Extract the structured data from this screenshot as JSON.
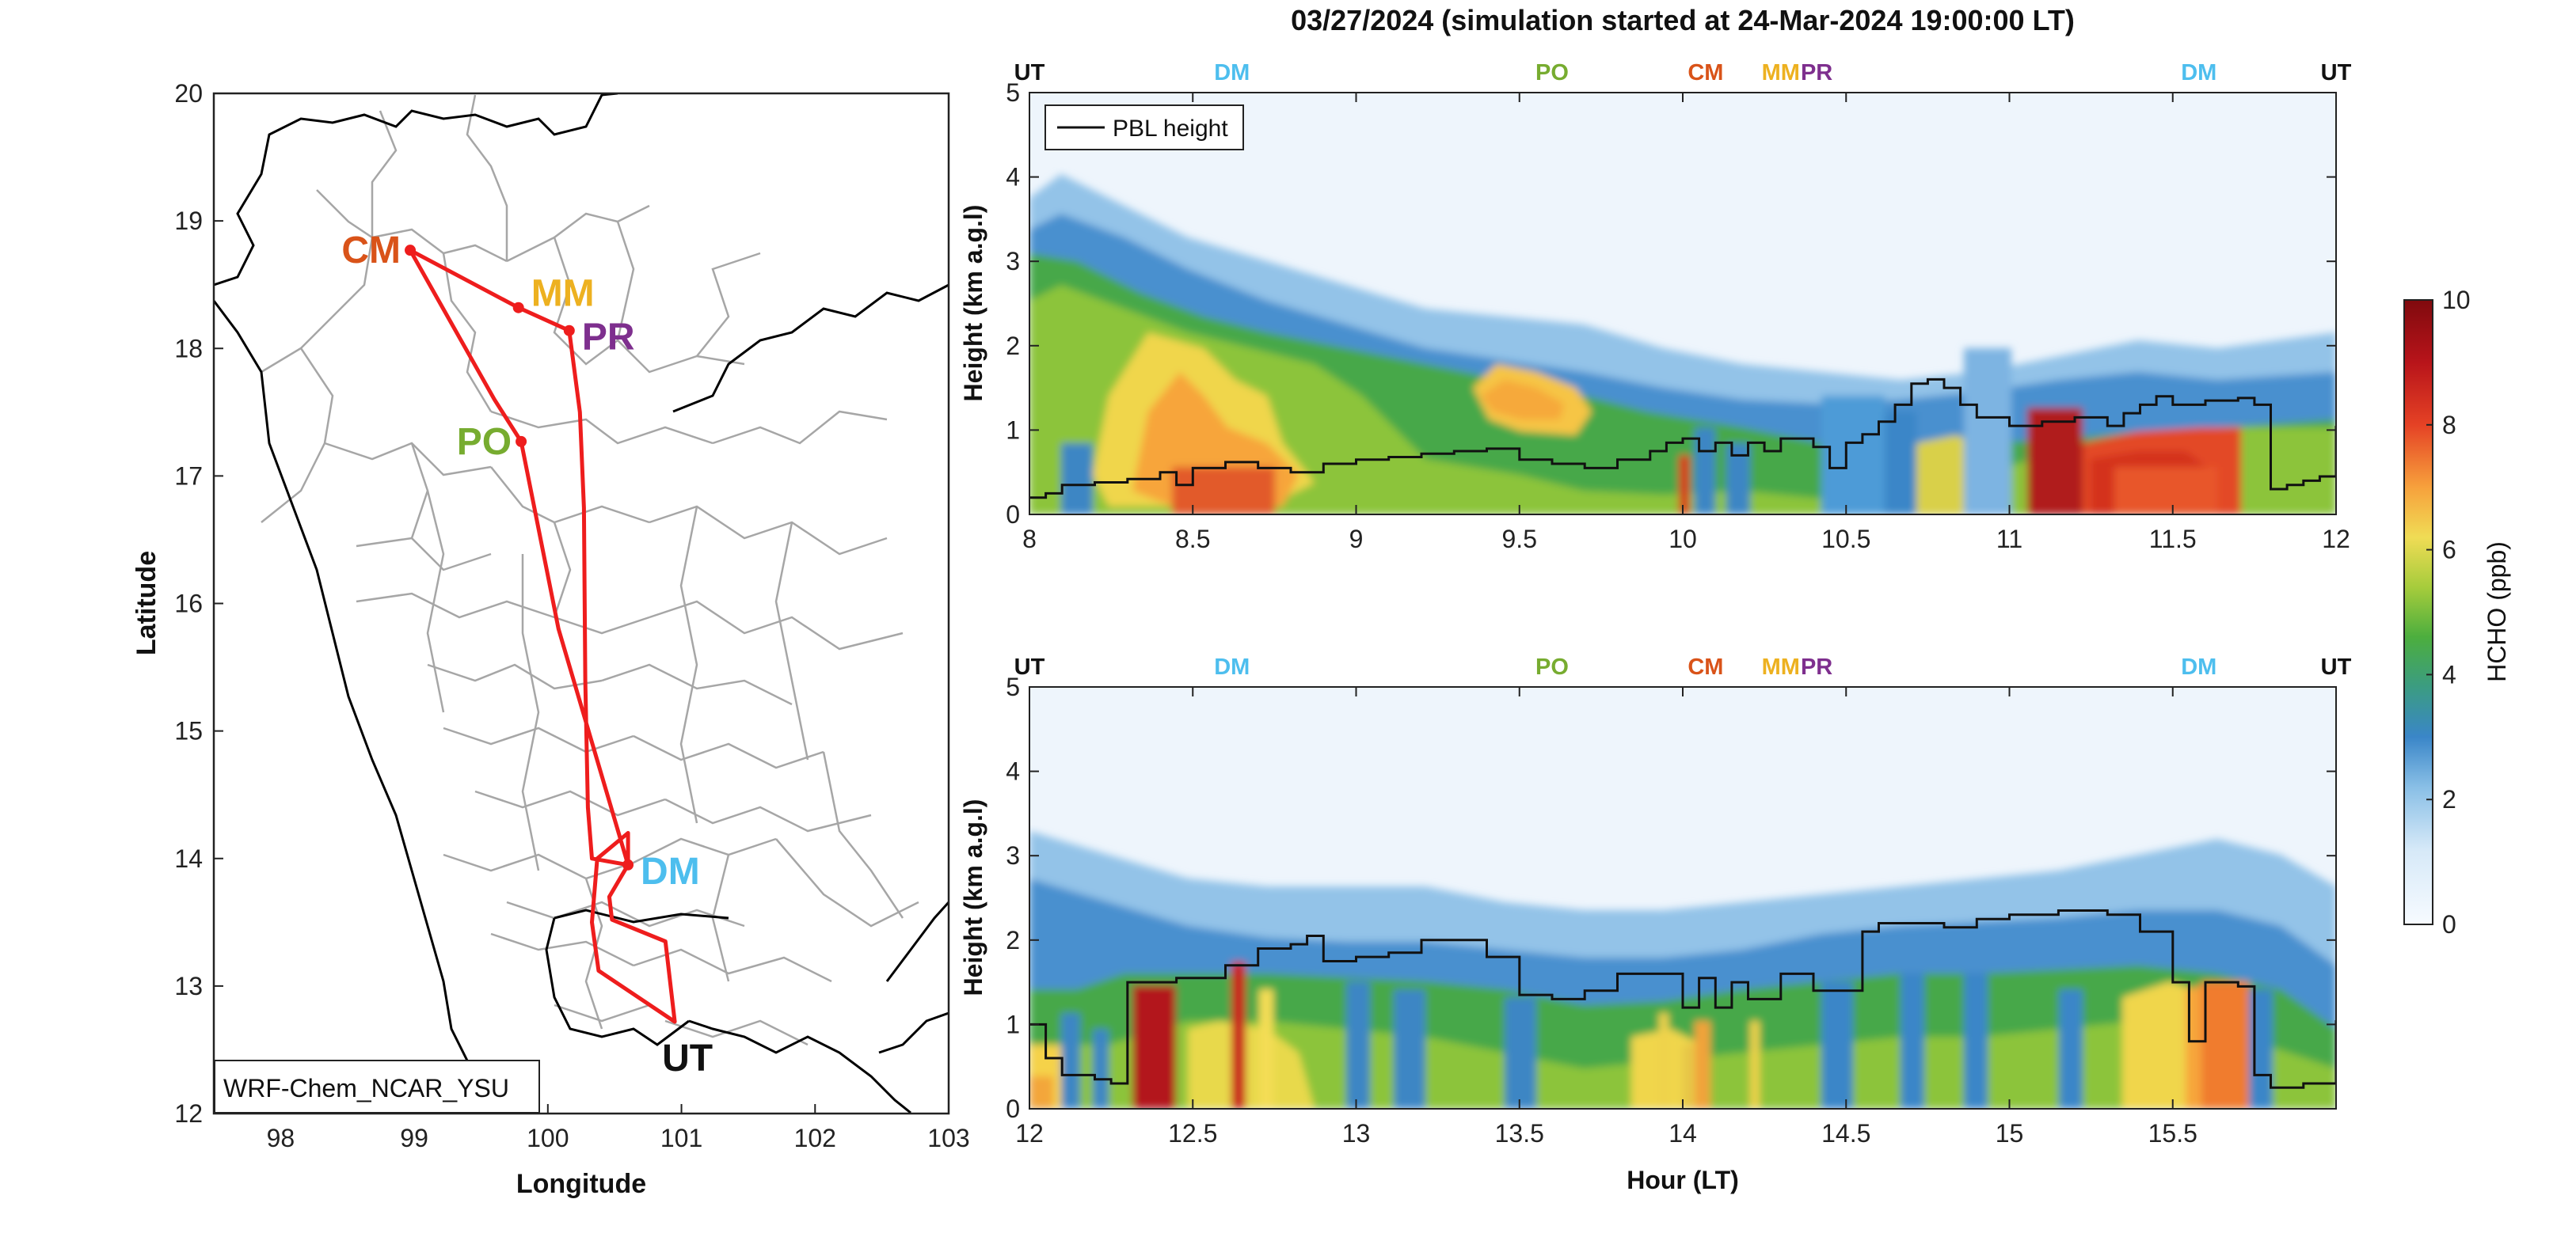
{
  "title": "03/27/2024 (simulation started at 24-Mar-2024 19:00:00 LT)",
  "colors": {
    "route": "#ee1d1d",
    "UT": "#111111",
    "DM": "#4dbeee",
    "PO": "#77ac30",
    "CM": "#d95319",
    "MM": "#edb120",
    "PR": "#7e2f8e",
    "boundary_thin": "#a6a6a6",
    "coast": "#000000"
  },
  "chart_data": [
    {
      "type": "line",
      "name": "map",
      "xlabel": "Longitude",
      "ylabel": "Latitude",
      "xlim": [
        97.5,
        103
      ],
      "ylim": [
        12,
        20
      ],
      "xticks": [
        "98",
        "99",
        "100",
        "101",
        "102",
        "103"
      ],
      "yticks": [
        "12",
        "13",
        "14",
        "15",
        "16",
        "17",
        "18",
        "19",
        "20"
      ],
      "model_label": "WRF-Chem_NCAR_YSU",
      "route": [
        [
          98.97,
          18.77
        ],
        [
          99.78,
          18.32
        ],
        [
          100.16,
          18.14
        ],
        [
          100.24,
          17.5
        ],
        [
          100.27,
          16.75
        ],
        [
          100.28,
          15.4
        ],
        [
          100.3,
          14.4
        ],
        [
          100.33,
          14.0
        ],
        [
          100.6,
          13.95
        ],
        [
          100.46,
          13.7
        ],
        [
          100.48,
          13.52
        ],
        [
          100.88,
          13.35
        ],
        [
          100.95,
          12.72
        ],
        [
          100.38,
          13.12
        ],
        [
          100.33,
          13.5
        ],
        [
          100.37,
          14.0
        ],
        [
          100.6,
          14.2
        ],
        [
          100.6,
          13.95
        ],
        [
          100.08,
          15.8
        ],
        [
          99.8,
          17.27
        ],
        [
          99.6,
          17.6
        ],
        [
          98.97,
          18.77
        ]
      ],
      "sites": [
        {
          "label": "CM",
          "lon": 98.97,
          "lat": 18.77,
          "label_anchor": "left"
        },
        {
          "label": "MM",
          "lon": 99.78,
          "lat": 18.32,
          "label_anchor": "right-up"
        },
        {
          "label": "PR",
          "lon": 100.16,
          "lat": 18.14,
          "label_anchor": "right"
        },
        {
          "label": "PO",
          "lon": 99.8,
          "lat": 17.27,
          "label_anchor": "left"
        },
        {
          "label": "DM",
          "lon": 100.6,
          "lat": 13.95,
          "label_anchor": "right"
        },
        {
          "label": "UT",
          "lon": 100.95,
          "lat": 12.72,
          "label_anchor": "below"
        }
      ]
    },
    {
      "type": "heatmap",
      "name": "curtain-top",
      "xlabel": "",
      "ylabel": "Height (km a.g.l)",
      "xlim": [
        8,
        12
      ],
      "ylim": [
        0,
        5
      ],
      "xticks": [
        "8",
        "8.5",
        "9",
        "9.5",
        "10",
        "10.5",
        "11",
        "11.5",
        "12"
      ],
      "yticks": [
        "0",
        "1",
        "2",
        "3",
        "4",
        "5"
      ],
      "site_labels": [
        {
          "label": "UT",
          "x": 8.0
        },
        {
          "label": "DM",
          "x": 8.62
        },
        {
          "label": "PO",
          "x": 9.6
        },
        {
          "label": "CM",
          "x": 10.07
        },
        {
          "label": "MM",
          "x": 10.3
        },
        {
          "label": "PR",
          "x": 10.41
        },
        {
          "label": "DM",
          "x": 11.58
        },
        {
          "label": "UT",
          "x": 12.0
        }
      ],
      "legend": [
        "PBL height"
      ],
      "pbl_height": [
        [
          8.0,
          0.2
        ],
        [
          8.05,
          0.25
        ],
        [
          8.1,
          0.35
        ],
        [
          8.2,
          0.38
        ],
        [
          8.3,
          0.42
        ],
        [
          8.4,
          0.5
        ],
        [
          8.45,
          0.35
        ],
        [
          8.5,
          0.55
        ],
        [
          8.6,
          0.62
        ],
        [
          8.7,
          0.55
        ],
        [
          8.8,
          0.5
        ],
        [
          8.9,
          0.6
        ],
        [
          9.0,
          0.65
        ],
        [
          9.1,
          0.68
        ],
        [
          9.2,
          0.72
        ],
        [
          9.3,
          0.75
        ],
        [
          9.4,
          0.78
        ],
        [
          9.5,
          0.65
        ],
        [
          9.6,
          0.6
        ],
        [
          9.7,
          0.55
        ],
        [
          9.8,
          0.65
        ],
        [
          9.9,
          0.75
        ],
        [
          9.95,
          0.85
        ],
        [
          10.0,
          0.9
        ],
        [
          10.05,
          0.75
        ],
        [
          10.1,
          0.85
        ],
        [
          10.15,
          0.7
        ],
        [
          10.2,
          0.85
        ],
        [
          10.25,
          0.75
        ],
        [
          10.3,
          0.9
        ],
        [
          10.4,
          0.8
        ],
        [
          10.45,
          0.55
        ],
        [
          10.5,
          0.85
        ],
        [
          10.55,
          0.95
        ],
        [
          10.6,
          1.1
        ],
        [
          10.65,
          1.3
        ],
        [
          10.7,
          1.55
        ],
        [
          10.75,
          1.6
        ],
        [
          10.8,
          1.5
        ],
        [
          10.85,
          1.3
        ],
        [
          10.9,
          1.15
        ],
        [
          11.0,
          1.05
        ],
        [
          11.1,
          1.1
        ],
        [
          11.2,
          1.15
        ],
        [
          11.3,
          1.05
        ],
        [
          11.35,
          1.2
        ],
        [
          11.4,
          1.3
        ],
        [
          11.45,
          1.4
        ],
        [
          11.5,
          1.3
        ],
        [
          11.6,
          1.35
        ],
        [
          11.7,
          1.38
        ],
        [
          11.75,
          1.3
        ],
        [
          11.8,
          0.3
        ],
        [
          11.85,
          0.35
        ],
        [
          11.9,
          0.4
        ],
        [
          11.95,
          0.45
        ],
        [
          12.0,
          1.05
        ]
      ]
    },
    {
      "type": "heatmap",
      "name": "curtain-bottom",
      "xlabel": "Hour (LT)",
      "ylabel": "Height (km a.g.l)",
      "xlim": [
        12,
        16
      ],
      "ylim": [
        0,
        5
      ],
      "xticks": [
        "12",
        "12.5",
        "13",
        "13.5",
        "14",
        "14.5",
        "15",
        "15.5"
      ],
      "yticks": [
        "0",
        "1",
        "2",
        "3",
        "4",
        "5"
      ],
      "site_labels": [
        {
          "label": "UT",
          "x": 12.0
        },
        {
          "label": "DM",
          "x": 12.62
        },
        {
          "label": "PO",
          "x": 13.6
        },
        {
          "label": "CM",
          "x": 14.07
        },
        {
          "label": "MM",
          "x": 14.3
        },
        {
          "label": "PR",
          "x": 14.41
        },
        {
          "label": "DM",
          "x": 15.58
        },
        {
          "label": "UT",
          "x": 16.0
        }
      ],
      "pbl_height": [
        [
          12.0,
          1.0
        ],
        [
          12.05,
          0.6
        ],
        [
          12.1,
          0.4
        ],
        [
          12.2,
          0.35
        ],
        [
          12.25,
          0.3
        ],
        [
          12.3,
          1.5
        ],
        [
          12.45,
          1.55
        ],
        [
          12.6,
          1.7
        ],
        [
          12.7,
          1.9
        ],
        [
          12.8,
          1.95
        ],
        [
          12.85,
          2.05
        ],
        [
          12.9,
          1.75
        ],
        [
          13.0,
          1.8
        ],
        [
          13.1,
          1.85
        ],
        [
          13.2,
          2.0
        ],
        [
          13.3,
          2.0
        ],
        [
          13.4,
          1.8
        ],
        [
          13.5,
          1.35
        ],
        [
          13.6,
          1.3
        ],
        [
          13.7,
          1.4
        ],
        [
          13.8,
          1.6
        ],
        [
          13.9,
          1.6
        ],
        [
          14.0,
          1.2
        ],
        [
          14.05,
          1.55
        ],
        [
          14.1,
          1.2
        ],
        [
          14.15,
          1.5
        ],
        [
          14.2,
          1.3
        ],
        [
          14.3,
          1.6
        ],
        [
          14.4,
          1.4
        ],
        [
          14.5,
          1.4
        ],
        [
          14.55,
          2.1
        ],
        [
          14.6,
          2.2
        ],
        [
          14.8,
          2.15
        ],
        [
          14.9,
          2.25
        ],
        [
          15.0,
          2.3
        ],
        [
          15.15,
          2.35
        ],
        [
          15.3,
          2.3
        ],
        [
          15.4,
          2.1
        ],
        [
          15.5,
          1.5
        ],
        [
          15.55,
          0.8
        ],
        [
          15.6,
          1.5
        ],
        [
          15.7,
          1.45
        ],
        [
          15.75,
          0.4
        ],
        [
          15.8,
          0.25
        ],
        [
          15.9,
          0.3
        ],
        [
          15.95,
          0.3
        ],
        [
          16.0,
          1.05
        ]
      ]
    },
    {
      "type": "heatmap",
      "name": "colorbar",
      "ylabel": "HCHO (ppb)",
      "ylim": [
        0,
        10
      ],
      "yticks": [
        "0",
        "2",
        "4",
        "6",
        "8",
        "10"
      ]
    }
  ]
}
